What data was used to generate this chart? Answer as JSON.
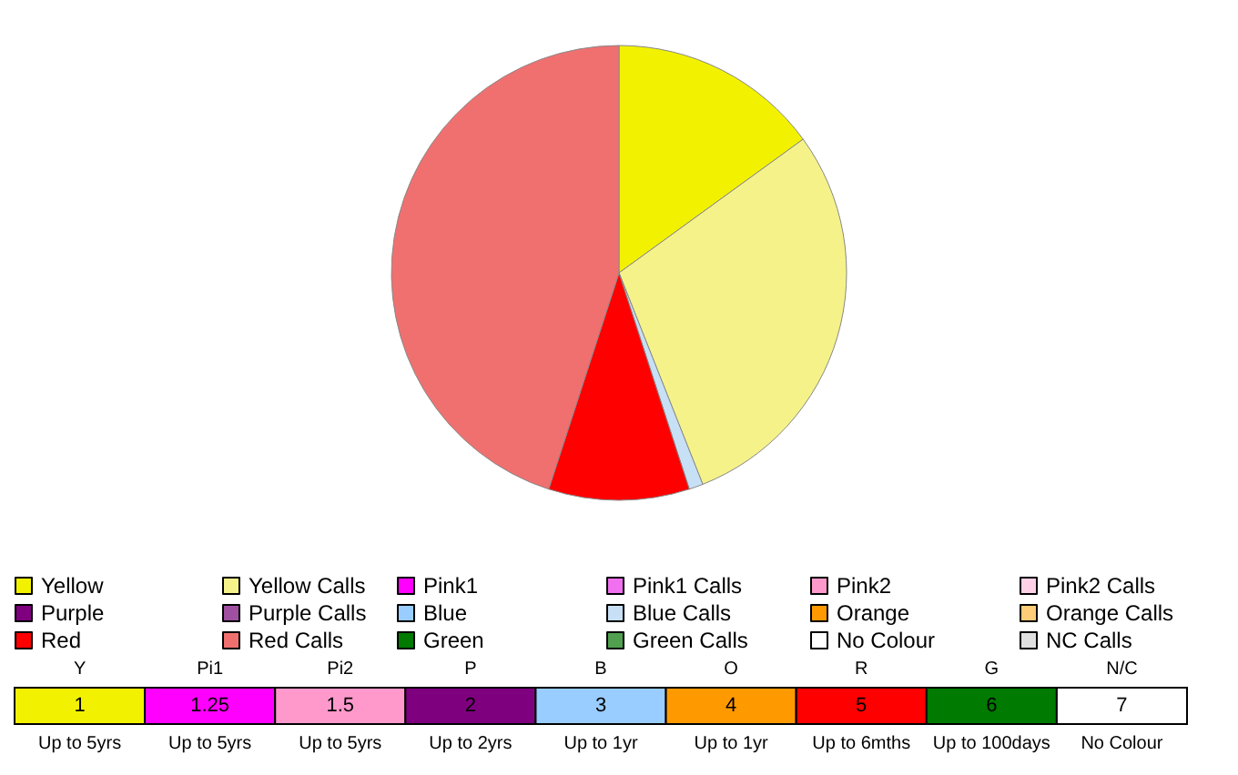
{
  "chart_data": {
    "type": "pie",
    "categories": [
      "Yellow",
      "Yellow Calls",
      "Pink1",
      "Pink1 Calls",
      "Pink2",
      "Pink2 Calls",
      "Purple",
      "Purple Calls",
      "Blue",
      "Blue Calls",
      "Orange",
      "Orange Calls",
      "Red",
      "Red Calls",
      "Green",
      "Green Calls",
      "No Colour",
      "NC Calls"
    ],
    "values": [
      15,
      29,
      0,
      0,
      0,
      0,
      0,
      0,
      0,
      1,
      0,
      0,
      10,
      45,
      0,
      0,
      0,
      0
    ],
    "colors": [
      "#f2f200",
      "#f5f28a",
      "#ff00ff",
      "#f070f0",
      "#ff99cc",
      "#ffd0e6",
      "#7f007f",
      "#a050a0",
      "#99ccff",
      "#c8e0f5",
      "#ff9900",
      "#ffcc77",
      "#ff0000",
      "#f07070",
      "#007a00",
      "#50a050",
      "#ffffff",
      "#e0e0e0"
    ],
    "legend": "bottom",
    "annotations": [
      "Y",
      "1",
      "Up to 5yrs",
      "Pi1",
      "1.25",
      "Up to 5yrs",
      "Pi2",
      "1.5",
      "Up to 5yrs",
      "P",
      "2",
      "Up to 2yrs",
      "B",
      "3",
      "Up to 1yr",
      "O",
      "4",
      "Up to 1yr",
      "R",
      "5",
      "Up to 6mths",
      "G",
      "6",
      "Up to 100days",
      "N/C",
      "7",
      "No Colour"
    ]
  }
}
